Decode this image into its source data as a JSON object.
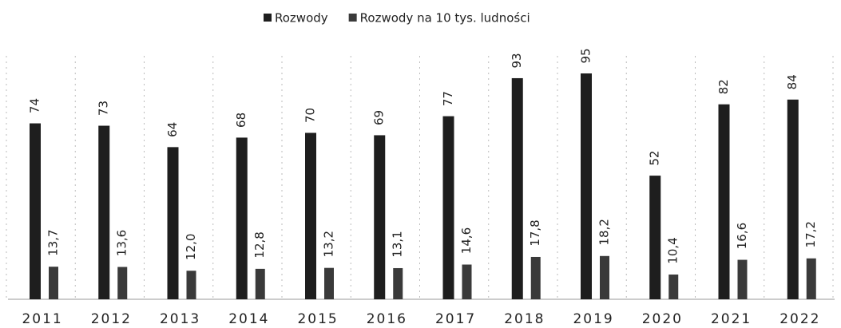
{
  "chart_data": {
    "type": "bar",
    "categories": [
      "2011",
      "2012",
      "2013",
      "2014",
      "2015",
      "2016",
      "2017",
      "2018",
      "2019",
      "2020",
      "2021",
      "2022"
    ],
    "series": [
      {
        "name": "Rozwody",
        "color": "#1e1e1e",
        "values": [
          74,
          73,
          64,
          68,
          70,
          69,
          77,
          93,
          95,
          52,
          82,
          84
        ]
      },
      {
        "name": "Rozwody  na 10 tys. ludności",
        "color": "#3a3a3a",
        "values": [
          13.7,
          13.6,
          12.0,
          12.8,
          13.2,
          13.1,
          14.6,
          17.8,
          18.2,
          10.4,
          16.6,
          17.2
        ],
        "value_labels": [
          "13,7",
          "13,6",
          "12,0",
          "12,8",
          "13,2",
          "13,1",
          "14,6",
          "17,8",
          "18,2",
          "10,4",
          "16,6",
          "17,2"
        ]
      }
    ],
    "legend": "top"
  }
}
